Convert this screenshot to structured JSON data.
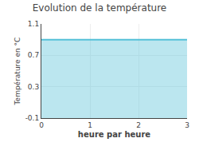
{
  "chart_data": {
    "type": "area",
    "title": "Evolution de la température",
    "xlabel": "heure par heure",
    "ylabel": "Température en °C",
    "x": [
      0,
      3
    ],
    "values": [
      0.9,
      0.9
    ],
    "color": "#55c0d8",
    "xlim": [
      0,
      3
    ],
    "xticks": [
      0,
      1,
      2,
      3
    ],
    "ylim": [
      -0.1,
      1.1
    ],
    "yticks": [
      -0.1,
      0.3,
      0.7,
      1.1
    ],
    "grid": true
  }
}
